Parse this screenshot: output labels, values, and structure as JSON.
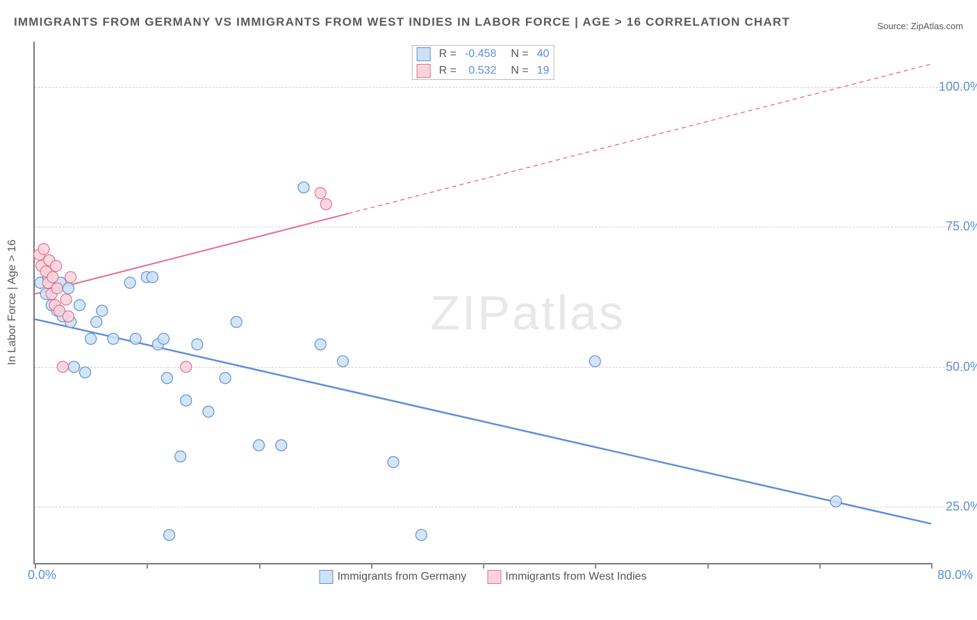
{
  "title": "IMMIGRANTS FROM GERMANY VS IMMIGRANTS FROM WEST INDIES IN LABOR FORCE | AGE > 16 CORRELATION CHART",
  "source_label": "Source: ZipAtlas.com",
  "watermark": {
    "bold": "ZIP",
    "light": "atlas"
  },
  "ylabel": "In Labor Force | Age > 16",
  "chart": {
    "type": "scatter-correlation",
    "background_color": "#ffffff",
    "grid_color": "#d0d0d0",
    "axis_color": "#777777",
    "label_color_axis": "#5f8fd6",
    "label_color_text": "#5a5a5a",
    "xlim": [
      0,
      80
    ],
    "ylim": [
      15,
      108
    ],
    "x_ticks": [
      0,
      10,
      20,
      30,
      40,
      50,
      60,
      70,
      80
    ],
    "x_tick_labels": {
      "min": "0.0%",
      "max": "80.0%"
    },
    "y_gridlines": [
      25,
      50,
      75,
      100
    ],
    "y_tick_labels": [
      "25.0%",
      "50.0%",
      "75.0%",
      "100.0%"
    ],
    "marker_radius": 8,
    "marker_stroke_width": 1.2,
    "series": [
      {
        "id": "germany",
        "label": "Immigrants from Germany",
        "fill": "#cde1f5",
        "stroke": "#5f8fd6",
        "points": [
          [
            0.5,
            65
          ],
          [
            1.0,
            63
          ],
          [
            1.2,
            66
          ],
          [
            1.5,
            61
          ],
          [
            1.8,
            64
          ],
          [
            2.0,
            60
          ],
          [
            2.3,
            65
          ],
          [
            2.5,
            59
          ],
          [
            3.0,
            64
          ],
          [
            3.2,
            58
          ],
          [
            3.5,
            50
          ],
          [
            4.0,
            61
          ],
          [
            4.5,
            49
          ],
          [
            5.0,
            55
          ],
          [
            5.5,
            58
          ],
          [
            6.0,
            60
          ],
          [
            7.0,
            55
          ],
          [
            8.5,
            65
          ],
          [
            9.0,
            55
          ],
          [
            10.0,
            66
          ],
          [
            10.5,
            66
          ],
          [
            11.0,
            54
          ],
          [
            11.5,
            55
          ],
          [
            11.8,
            48
          ],
          [
            12.0,
            20
          ],
          [
            13.0,
            34
          ],
          [
            13.5,
            44
          ],
          [
            14.5,
            54
          ],
          [
            15.5,
            42
          ],
          [
            17.0,
            48
          ],
          [
            18.0,
            58
          ],
          [
            20.0,
            36
          ],
          [
            22.0,
            36
          ],
          [
            24.0,
            82
          ],
          [
            25.5,
            54
          ],
          [
            27.5,
            51
          ],
          [
            32.0,
            33
          ],
          [
            34.5,
            20
          ],
          [
            50.0,
            51
          ],
          [
            71.5,
            26
          ]
        ],
        "trend": {
          "x1": 0,
          "y1": 58.5,
          "x2": 80,
          "y2": 22,
          "solid_until_x": 80,
          "stroke_width": 2.5
        },
        "stats": {
          "R": "-0.458",
          "N": "40"
        }
      },
      {
        "id": "west_indies",
        "label": "Immigrants from West Indies",
        "fill": "#f9d4dc",
        "stroke": "#e66d8f",
        "points": [
          [
            0.4,
            70
          ],
          [
            0.6,
            68
          ],
          [
            0.8,
            71
          ],
          [
            1.0,
            67
          ],
          [
            1.2,
            65
          ],
          [
            1.3,
            69
          ],
          [
            1.5,
            63
          ],
          [
            1.6,
            66
          ],
          [
            1.8,
            61
          ],
          [
            1.9,
            68
          ],
          [
            2.0,
            64
          ],
          [
            2.2,
            60
          ],
          [
            2.5,
            50
          ],
          [
            2.8,
            62
          ],
          [
            3.0,
            59
          ],
          [
            3.2,
            66
          ],
          [
            13.5,
            50
          ],
          [
            25.5,
            81
          ],
          [
            26.0,
            79
          ]
        ],
        "trend": {
          "x1": 0,
          "y1": 63,
          "x2": 80,
          "y2": 104,
          "solid_until_x": 28,
          "stroke_width": 2
        },
        "stats": {
          "R": "0.532",
          "N": "19"
        }
      }
    ],
    "legend_top": {
      "border_color": "#bbbbbb",
      "cols": [
        "R =",
        "N ="
      ]
    }
  }
}
